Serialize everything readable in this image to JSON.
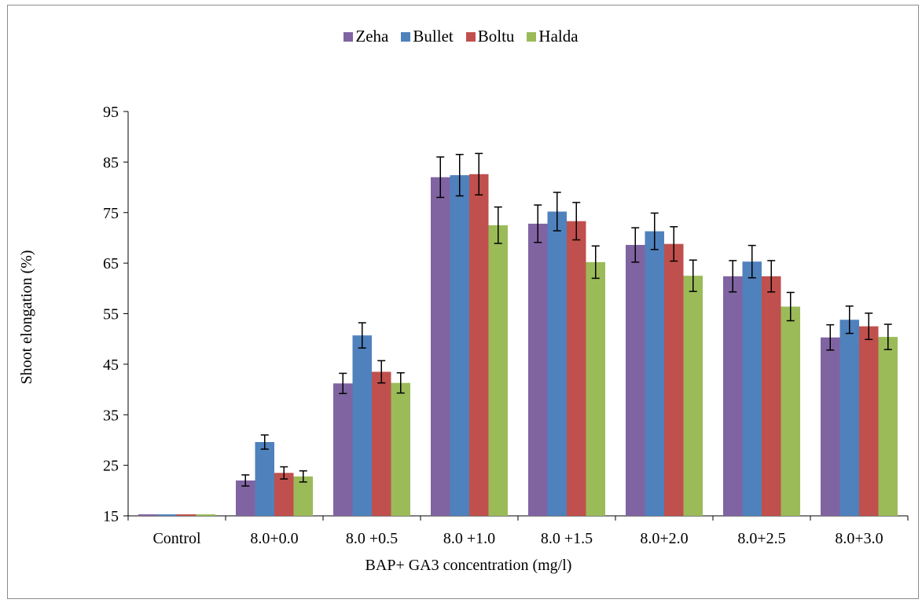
{
  "chart_data": {
    "type": "bar",
    "title": "",
    "xlabel": "BAP+ GA3 concentration (mg/l)",
    "ylabel": "Shoot elongation (%)",
    "ylim": [
      15,
      95
    ],
    "yticks": [
      15,
      25,
      35,
      45,
      55,
      65,
      75,
      85,
      95
    ],
    "grid": false,
    "legend_position": "top",
    "categories": [
      "Control",
      "8.0+0.0",
      "8.0 +0.5",
      "8.0 +1.0",
      "8.0 +1.5",
      "8.0+2.0",
      "8.0+2.5",
      "8.0+3.0"
    ],
    "series": [
      {
        "name": "Zeha",
        "color": "#8064A2",
        "values": [
          15.3,
          22.0,
          41.2,
          82.0,
          72.8,
          68.6,
          62.4,
          50.3
        ],
        "errors": [
          0,
          1.1,
          2.0,
          4.0,
          3.7,
          3.4,
          3.1,
          2.5
        ]
      },
      {
        "name": "Bullet",
        "color": "#4F81BD",
        "values": [
          15.3,
          29.6,
          50.7,
          82.4,
          75.2,
          71.3,
          65.3,
          53.8
        ],
        "errors": [
          0,
          1.4,
          2.5,
          4.1,
          3.8,
          3.6,
          3.2,
          2.7
        ]
      },
      {
        "name": "Boltu",
        "color": "#C0504D",
        "values": [
          15.3,
          23.5,
          43.5,
          82.6,
          73.3,
          68.8,
          62.4,
          52.5
        ],
        "errors": [
          0,
          1.2,
          2.2,
          4.1,
          3.7,
          3.4,
          3.1,
          2.6
        ]
      },
      {
        "name": "Halda",
        "color": "#9BBB59",
        "values": [
          15.3,
          22.8,
          41.3,
          72.5,
          65.2,
          62.5,
          56.4,
          50.4
        ],
        "errors": [
          0,
          1.1,
          2.0,
          3.6,
          3.2,
          3.1,
          2.8,
          2.5
        ]
      }
    ]
  }
}
